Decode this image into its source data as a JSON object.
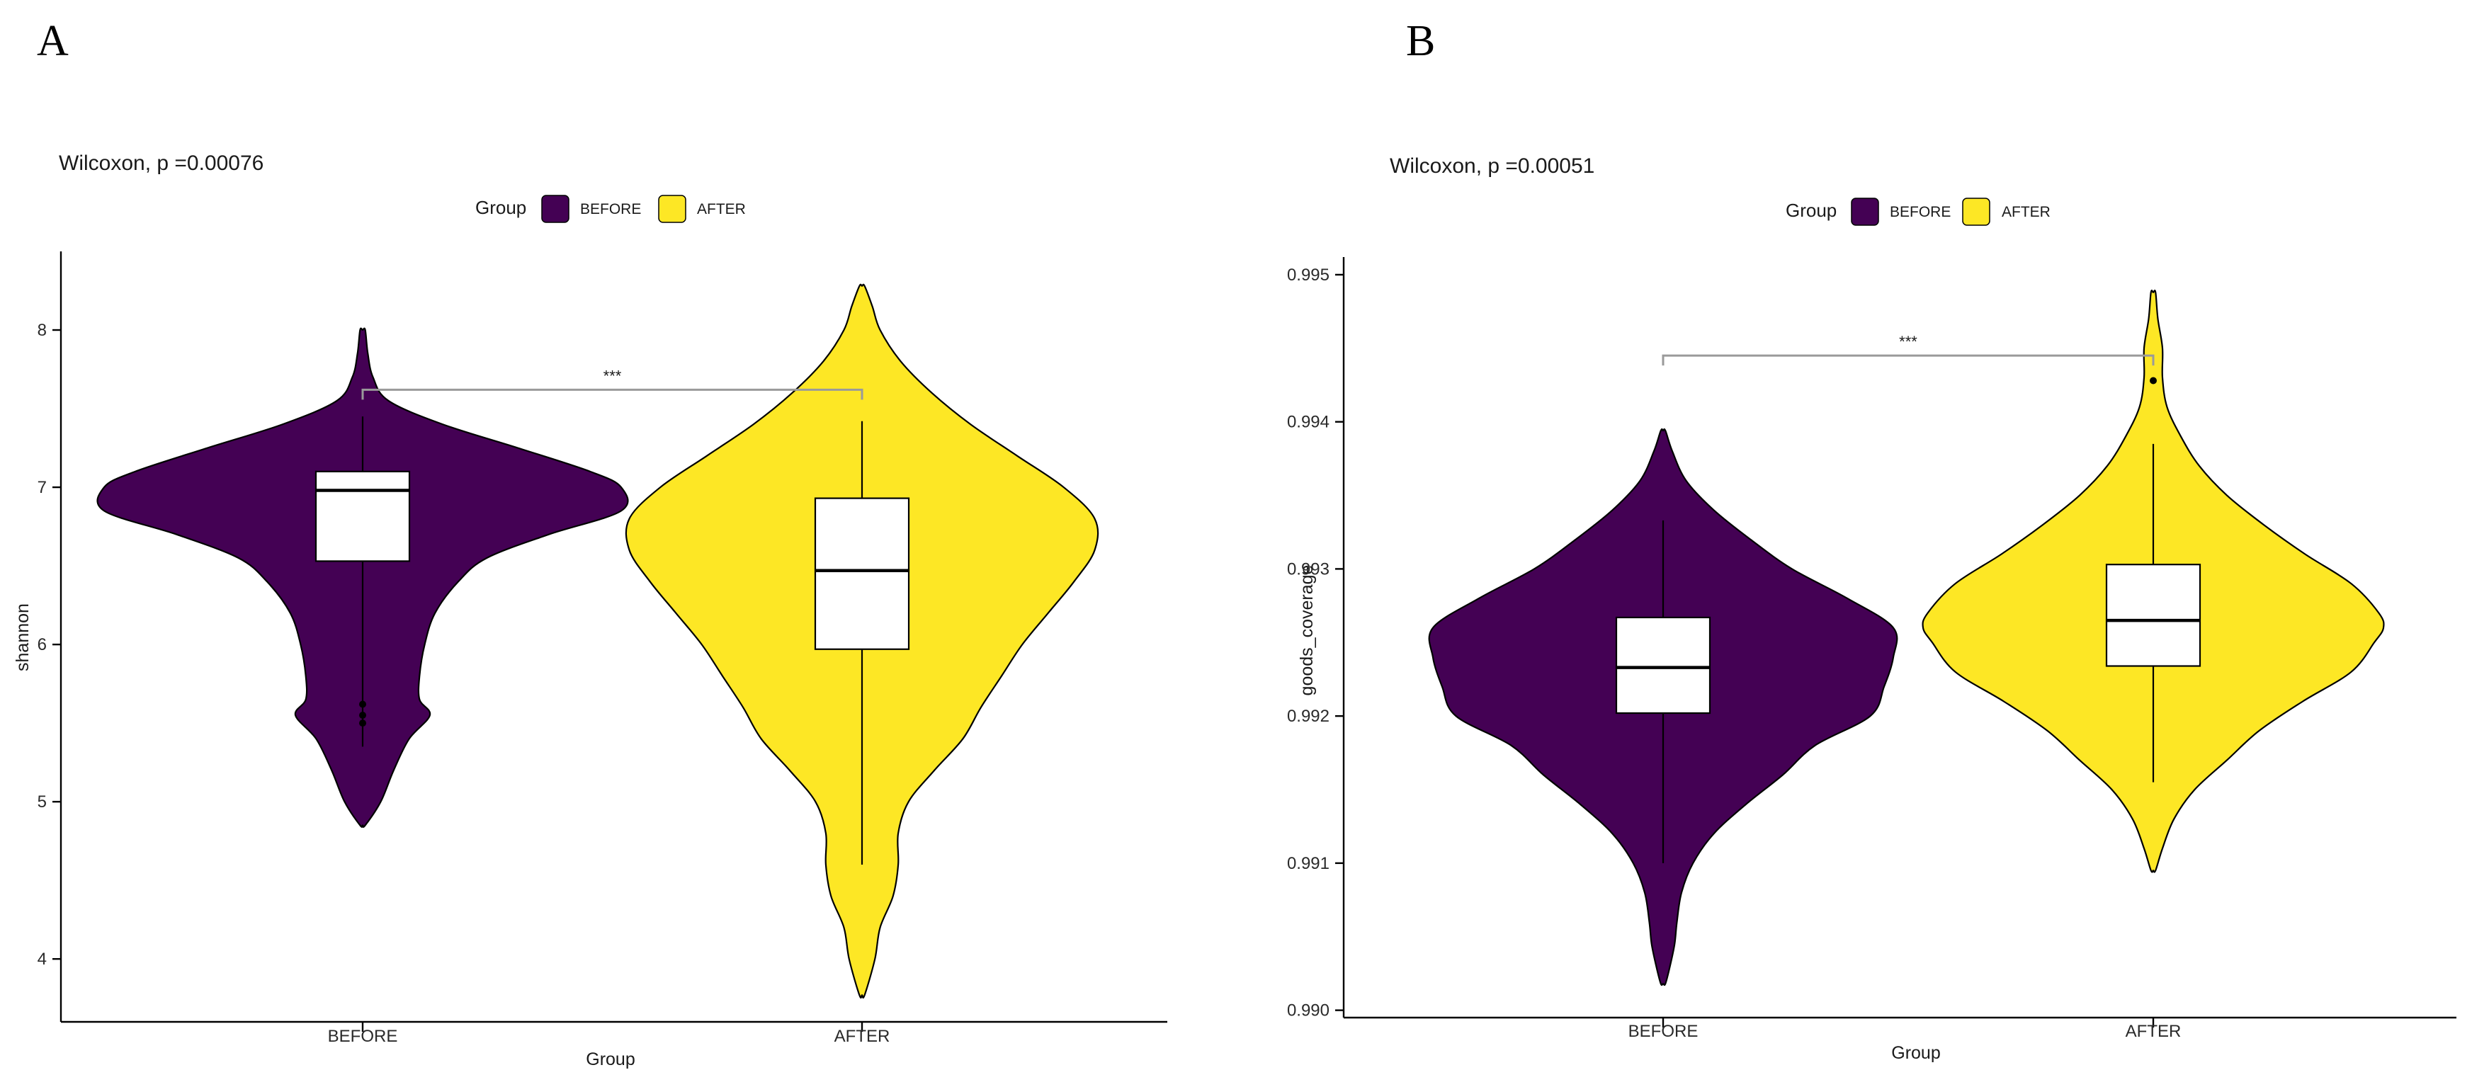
{
  "colors": {
    "before": "#440154",
    "after": "#FDE725",
    "outline": "#000000",
    "bracket": "#9a9a9a"
  },
  "chart_data": [
    {
      "type": "violin",
      "panel_label": "A",
      "title": "Wilcoxon, p =0.00076",
      "xlabel": "Group",
      "ylabel": "shannon",
      "legend": {
        "title": "Group",
        "entries": [
          "BEFORE",
          "AFTER"
        ],
        "position": "top"
      },
      "categories": [
        "BEFORE",
        "AFTER"
      ],
      "ylim": [
        3.6,
        8.5
      ],
      "yticks": [
        4,
        5,
        6,
        7,
        8
      ],
      "tick_labels": [
        "4",
        "5",
        "6",
        "7",
        "8"
      ],
      "grid": false,
      "series": [
        {
          "name": "BEFORE",
          "violin_profile": [
            [
              4.85,
              0.01
            ],
            [
              5.0,
              0.07
            ],
            [
              5.2,
              0.12
            ],
            [
              5.4,
              0.18
            ],
            [
              5.55,
              0.26
            ],
            [
              5.65,
              0.22
            ],
            [
              5.8,
              0.22
            ],
            [
              6.0,
              0.24
            ],
            [
              6.2,
              0.28
            ],
            [
              6.4,
              0.37
            ],
            [
              6.55,
              0.48
            ],
            [
              6.7,
              0.72
            ],
            [
              6.85,
              1.0
            ],
            [
              7.0,
              1.0
            ],
            [
              7.1,
              0.88
            ],
            [
              7.25,
              0.6
            ],
            [
              7.4,
              0.31
            ],
            [
              7.55,
              0.1
            ],
            [
              7.7,
              0.04
            ],
            [
              7.85,
              0.02
            ],
            [
              8.0,
              0.01
            ]
          ],
          "box": {
            "q1": 6.53,
            "median": 6.98,
            "q3": 7.1,
            "whisker_low": 5.35,
            "whisker_high": 7.45
          },
          "outliers": [
            5.5,
            5.55,
            5.62
          ]
        },
        {
          "name": "AFTER",
          "violin_profile": [
            [
              3.77,
              0.01
            ],
            [
              4.0,
              0.05
            ],
            [
              4.2,
              0.07
            ],
            [
              4.4,
              0.12
            ],
            [
              4.6,
              0.14
            ],
            [
              4.8,
              0.14
            ],
            [
              5.0,
              0.18
            ],
            [
              5.2,
              0.28
            ],
            [
              5.4,
              0.39
            ],
            [
              5.6,
              0.46
            ],
            [
              5.8,
              0.54
            ],
            [
              6.0,
              0.62
            ],
            [
              6.2,
              0.72
            ],
            [
              6.4,
              0.82
            ],
            [
              6.6,
              0.9
            ],
            [
              6.8,
              0.9
            ],
            [
              7.0,
              0.78
            ],
            [
              7.2,
              0.6
            ],
            [
              7.4,
              0.42
            ],
            [
              7.6,
              0.27
            ],
            [
              7.8,
              0.15
            ],
            [
              8.0,
              0.07
            ],
            [
              8.15,
              0.04
            ],
            [
              8.28,
              0.01
            ]
          ],
          "box": {
            "q1": 5.97,
            "median": 6.47,
            "q3": 6.93,
            "whisker_low": 4.6,
            "whisker_high": 7.42
          },
          "outliers": []
        }
      ],
      "annotation": {
        "text": "***",
        "y": 7.62
      }
    },
    {
      "type": "violin",
      "panel_label": "B",
      "title": "Wilcoxon, p =0.00051",
      "xlabel": "Group",
      "ylabel": "goods_coverage",
      "legend": {
        "title": "Group",
        "entries": [
          "BEFORE",
          "AFTER"
        ],
        "position": "top"
      },
      "categories": [
        "BEFORE",
        "AFTER"
      ],
      "ylim": [
        0.98995,
        0.99512
      ],
      "yticks": [
        0.99,
        0.991,
        0.992,
        0.993,
        0.994,
        0.995
      ],
      "tick_labels": [
        "0.990",
        "0.991",
        "0.992",
        "0.993",
        "0.994",
        "0.995"
      ],
      "grid": false,
      "series": [
        {
          "name": "BEFORE",
          "violin_profile": [
            [
              0.99018,
              0.01
            ],
            [
              0.9903,
              0.03
            ],
            [
              0.99045,
              0.05
            ],
            [
              0.9906,
              0.06
            ],
            [
              0.9908,
              0.08
            ],
            [
              0.991,
              0.13
            ],
            [
              0.9912,
              0.22
            ],
            [
              0.9914,
              0.36
            ],
            [
              0.9916,
              0.52
            ],
            [
              0.9918,
              0.66
            ],
            [
              0.992,
              0.9
            ],
            [
              0.9922,
              0.96
            ],
            [
              0.9924,
              1.0
            ],
            [
              0.9926,
              1.0
            ],
            [
              0.9928,
              0.8
            ],
            [
              0.993,
              0.56
            ],
            [
              0.9932,
              0.38
            ],
            [
              0.9934,
              0.22
            ],
            [
              0.9936,
              0.1
            ],
            [
              0.9938,
              0.04
            ],
            [
              0.99394,
              0.01
            ]
          ],
          "box": {
            "q1": 0.99202,
            "median": 0.99233,
            "q3": 0.99267,
            "whisker_low": 0.991,
            "whisker_high": 0.99333
          },
          "outliers": []
        },
        {
          "name": "AFTER",
          "violin_profile": [
            [
              0.99095,
              0.01
            ],
            [
              0.9911,
              0.04
            ],
            [
              0.9913,
              0.09
            ],
            [
              0.9915,
              0.18
            ],
            [
              0.9917,
              0.32
            ],
            [
              0.9919,
              0.46
            ],
            [
              0.9921,
              0.65
            ],
            [
              0.9923,
              0.86
            ],
            [
              0.9925,
              0.96
            ],
            [
              0.9926,
              1.0
            ],
            [
              0.9927,
              0.98
            ],
            [
              0.9929,
              0.86
            ],
            [
              0.9931,
              0.66
            ],
            [
              0.9933,
              0.48
            ],
            [
              0.9935,
              0.32
            ],
            [
              0.9937,
              0.2
            ],
            [
              0.9939,
              0.12
            ],
            [
              0.9941,
              0.06
            ],
            [
              0.9943,
              0.04
            ],
            [
              0.9945,
              0.04
            ],
            [
              0.9947,
              0.02
            ],
            [
              0.99488,
              0.01
            ]
          ],
          "box": {
            "q1": 0.99234,
            "median": 0.99265,
            "q3": 0.99303,
            "whisker_low": 0.99155,
            "whisker_high": 0.99385
          },
          "outliers": [
            0.99428
          ]
        }
      ],
      "annotation": {
        "text": "***",
        "y": 0.99445
      }
    }
  ]
}
